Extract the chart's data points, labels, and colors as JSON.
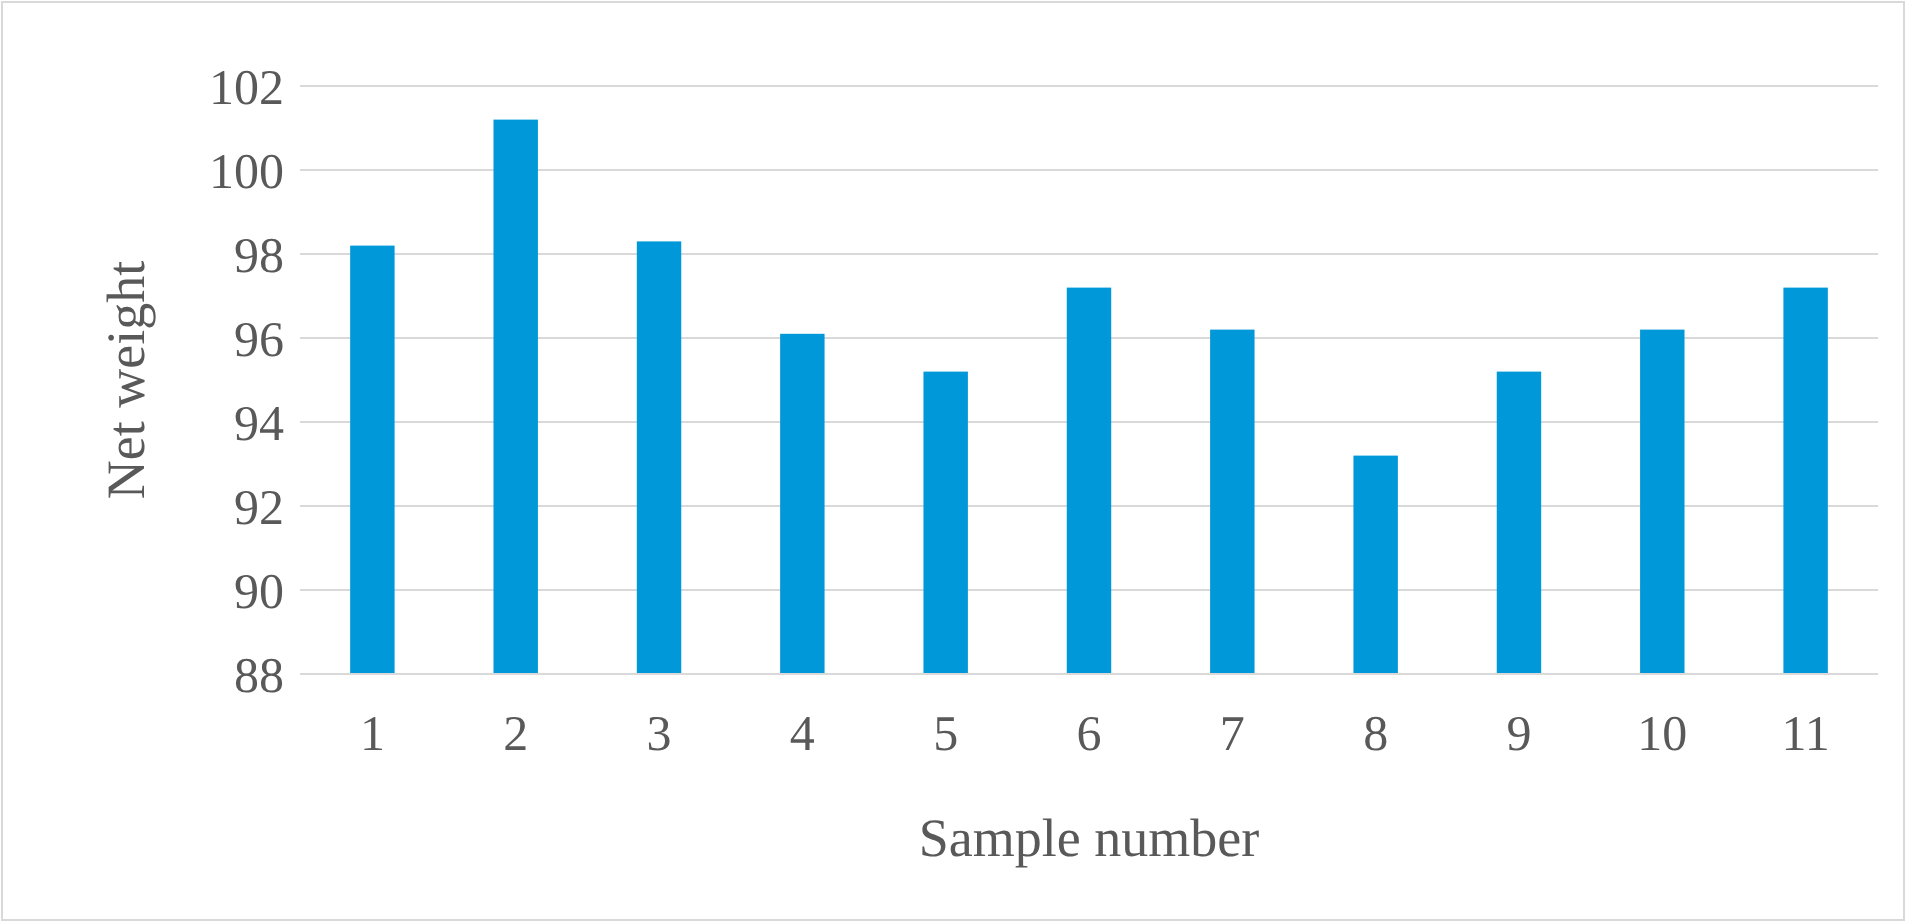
{
  "chart_data": {
    "type": "bar",
    "xlabel": "Sample number",
    "ylabel": "Net weight",
    "categories": [
      "1",
      "2",
      "3",
      "4",
      "5",
      "6",
      "7",
      "8",
      "9",
      "10",
      "11"
    ],
    "values": [
      98.2,
      101.2,
      98.3,
      96.1,
      95.2,
      97.2,
      96.2,
      93.2,
      95.2,
      96.2,
      97.2
    ],
    "color": "#0098d8",
    "ylim": [
      88,
      102
    ],
    "yticks": [
      88,
      90,
      92,
      94,
      96,
      98,
      100,
      102
    ],
    "grid": "y"
  }
}
